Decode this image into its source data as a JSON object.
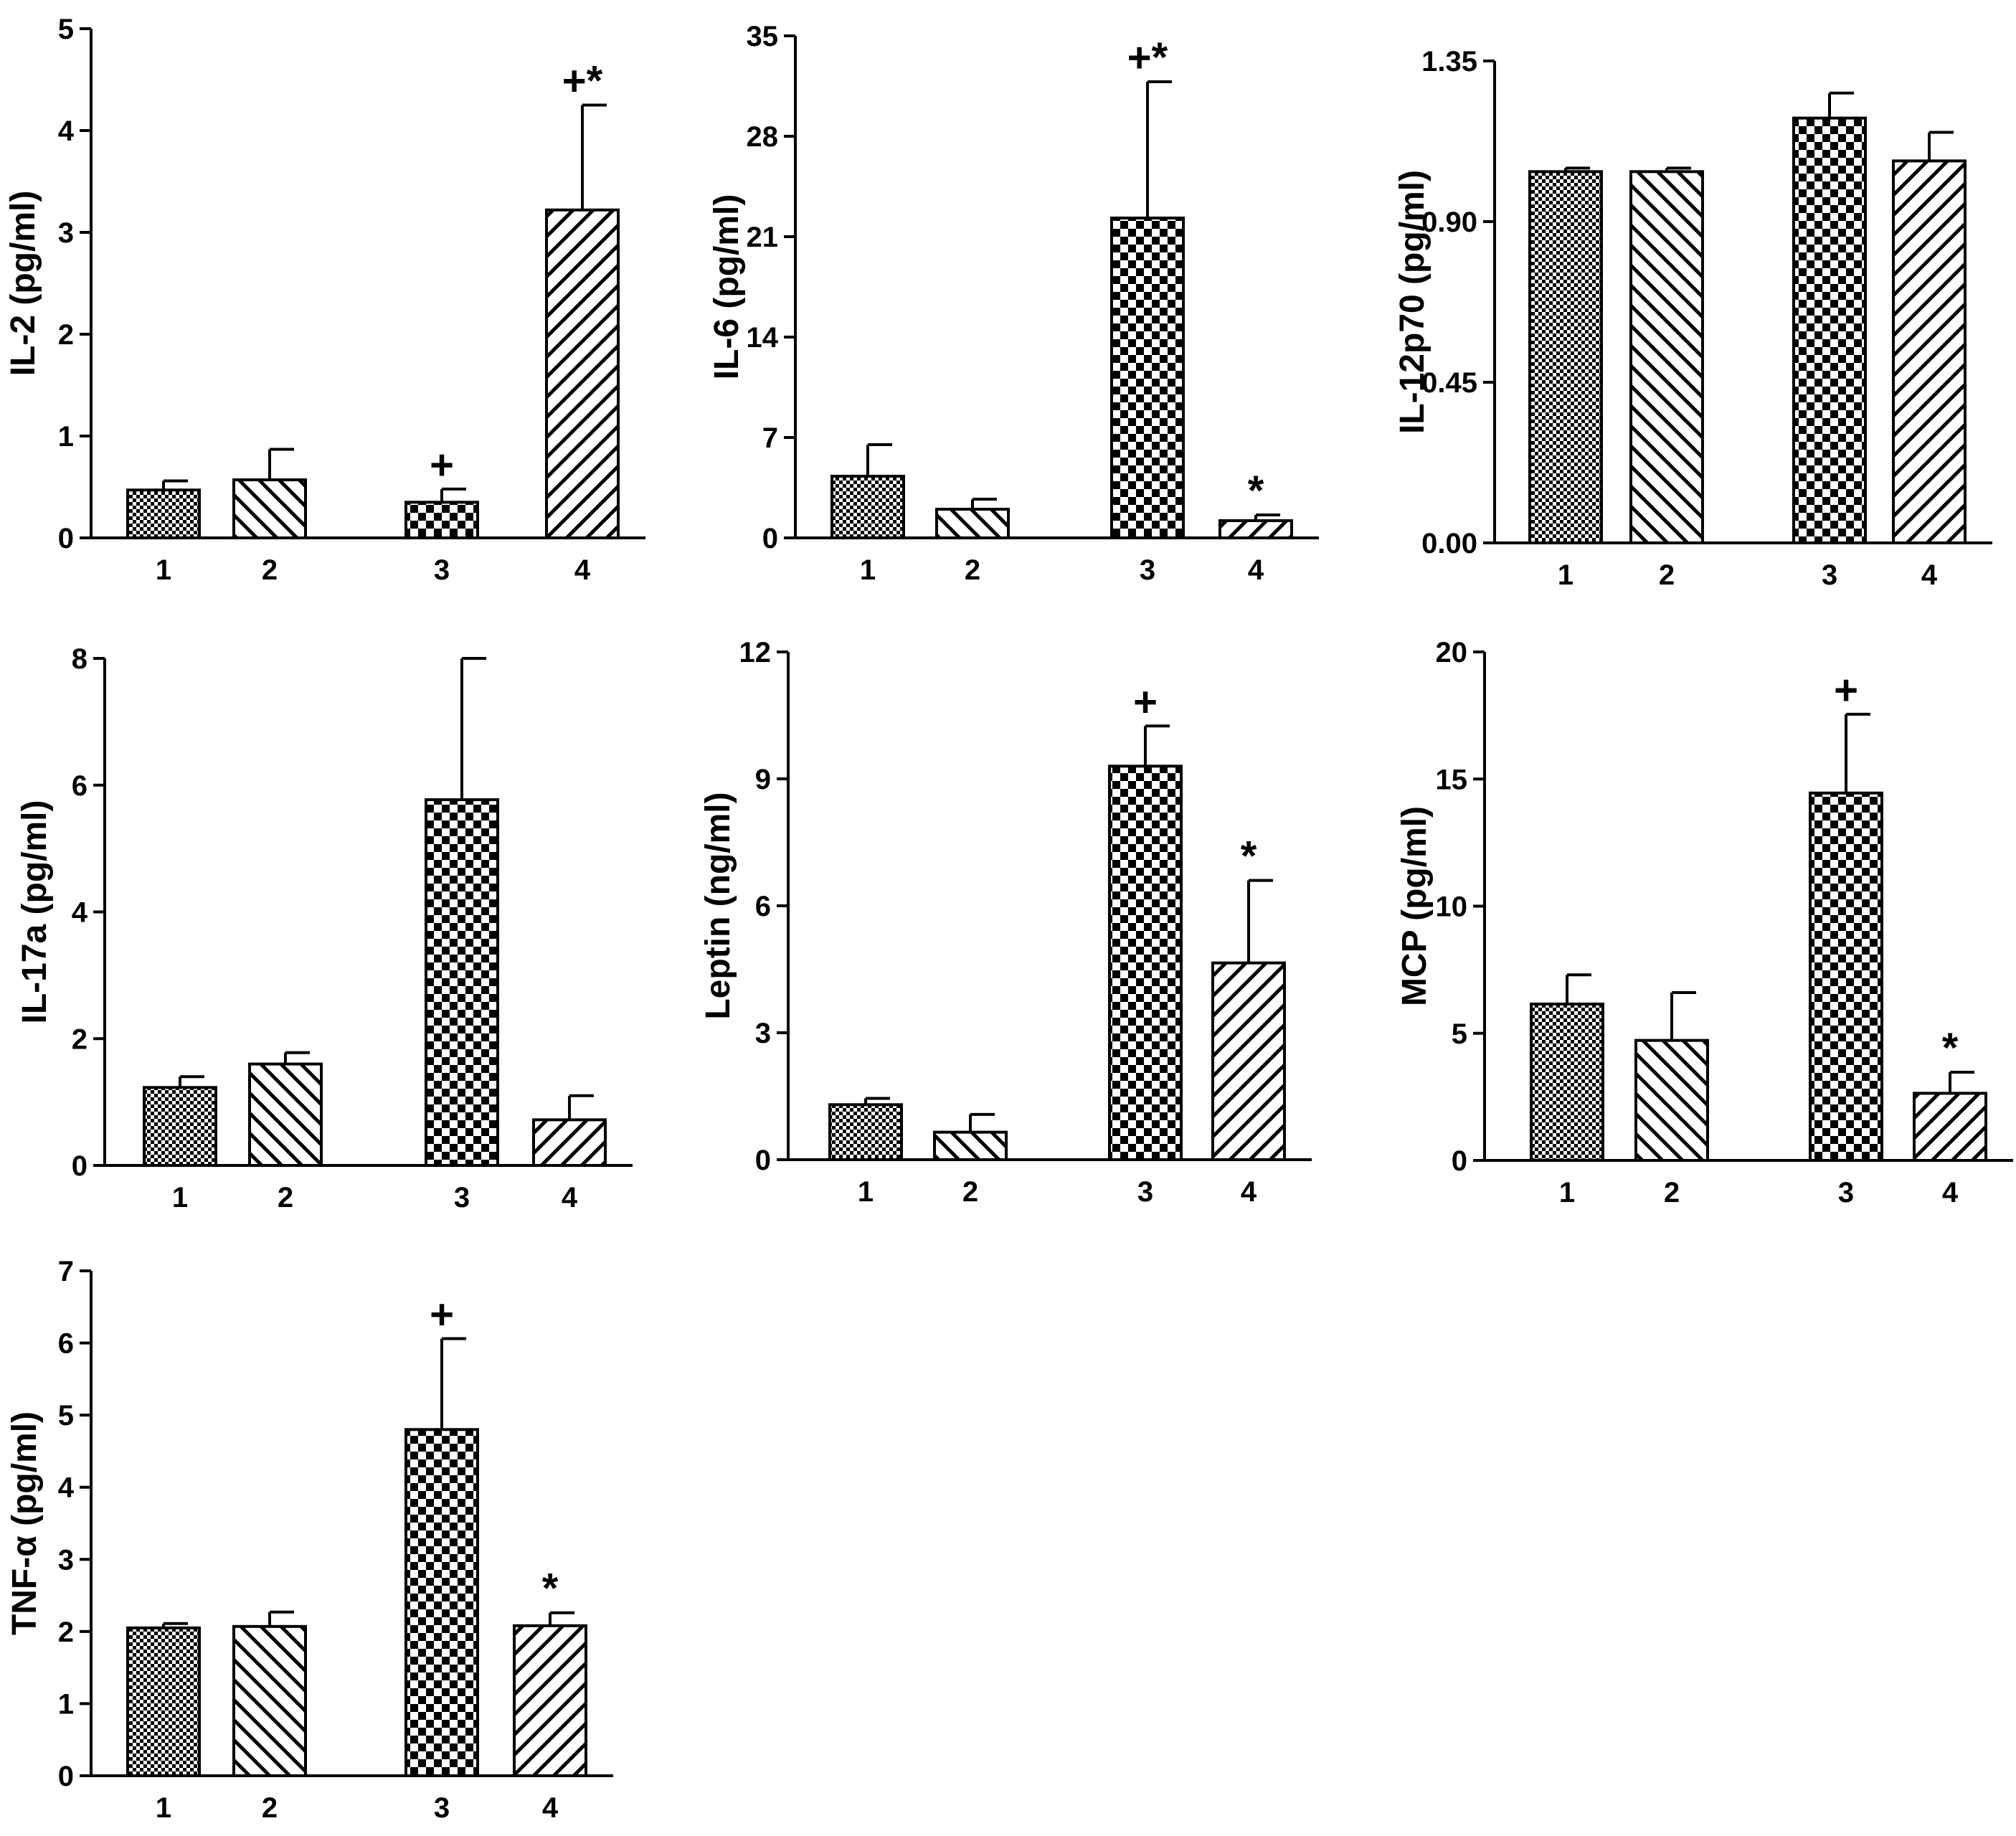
{
  "chart_data": [
    {
      "type": "bar",
      "ylabel": "IL-2 (pg/ml)",
      "ylim": [
        0,
        5
      ],
      "yticks": [
        "0",
        "1",
        "2",
        "3",
        "4",
        "5"
      ],
      "categories": [
        "1",
        "2",
        "3",
        "4"
      ],
      "values": [
        0.47,
        0.57,
        0.35,
        3.22
      ],
      "errors": [
        0.09,
        0.3,
        0.13,
        1.03
      ],
      "annotations": [
        "",
        "",
        "+",
        "+*"
      ]
    },
    {
      "type": "bar",
      "ylabel": "IL-6 (pg/ml)",
      "ylim": [
        0,
        35
      ],
      "yticks": [
        "0",
        "7",
        "14",
        "21",
        "28",
        "35"
      ],
      "categories": [
        "1",
        "2",
        "3",
        "4"
      ],
      "values": [
        4.3,
        2.0,
        22.3,
        1.2
      ],
      "errors": [
        2.2,
        0.7,
        9.5,
        0.4
      ],
      "annotations": [
        "",
        "",
        "+*",
        "*"
      ]
    },
    {
      "type": "bar",
      "ylabel": "IL-12p70 (pg/ml)",
      "ylim": [
        0,
        1.35
      ],
      "yticks": [
        "0.00",
        "0.45",
        "0.90",
        "1.35"
      ],
      "categories": [
        "1",
        "2",
        "3",
        "4"
      ],
      "values": [
        1.04,
        1.04,
        1.19,
        1.07
      ],
      "errors": [
        0.01,
        0.01,
        0.07,
        0.08
      ],
      "annotations": [
        "",
        "",
        "",
        ""
      ]
    },
    {
      "type": "bar",
      "ylabel": "IL-17a (pg/ml)",
      "ylim": [
        0,
        8
      ],
      "yticks": [
        "0",
        "2",
        "4",
        "6",
        "8"
      ],
      "categories": [
        "1",
        "2",
        "3",
        "4"
      ],
      "values": [
        1.23,
        1.6,
        5.77,
        0.72
      ],
      "errors": [
        0.17,
        0.18,
        2.23,
        0.38
      ],
      "annotations": [
        "",
        "",
        "",
        ""
      ]
    },
    {
      "type": "bar",
      "ylabel": "Leptin (ng/ml)",
      "ylim": [
        0,
        12
      ],
      "yticks": [
        "0",
        "3",
        "6",
        "9",
        "12"
      ],
      "categories": [
        "1",
        "2",
        "3",
        "4"
      ],
      "values": [
        1.3,
        0.65,
        9.3,
        4.65
      ],
      "errors": [
        0.15,
        0.42,
        0.95,
        1.95
      ],
      "annotations": [
        "",
        "",
        "+",
        "*"
      ]
    },
    {
      "type": "bar",
      "ylabel": "MCP (pg/ml)",
      "ylim": [
        0,
        20
      ],
      "yticks": [
        "0",
        "5",
        "10",
        "15",
        "20"
      ],
      "categories": [
        "1",
        "2",
        "3",
        "4"
      ],
      "values": [
        6.15,
        4.72,
        14.45,
        2.64
      ],
      "errors": [
        1.15,
        1.88,
        3.1,
        0.83
      ],
      "annotations": [
        "",
        "",
        "+",
        "*"
      ]
    },
    {
      "type": "bar",
      "ylabel": "TNF-α (pg/ml)",
      "ylim": [
        0,
        7
      ],
      "yticks": [
        "0",
        "1",
        "2",
        "3",
        "4",
        "5",
        "6",
        "7"
      ],
      "categories": [
        "1",
        "2",
        "3",
        "4"
      ],
      "values": [
        2.05,
        2.07,
        4.8,
        2.08
      ],
      "errors": [
        0.06,
        0.2,
        1.26,
        0.18
      ],
      "annotations": [
        "",
        "",
        "+",
        "*"
      ]
    }
  ]
}
